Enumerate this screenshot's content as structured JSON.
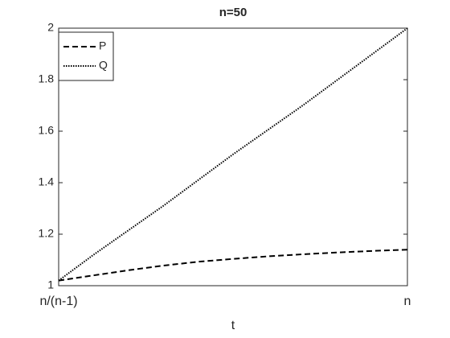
{
  "chart_data": {
    "type": "line",
    "title": "n=50",
    "x_label": "t",
    "x": [
      1.0204,
      5.918,
      10.816,
      15.714,
      20.612,
      25.51,
      30.408,
      35.306,
      40.204,
      45.102,
      50
    ],
    "series": [
      {
        "name": "P",
        "color": "#000000",
        "dash": "dashed",
        "values": [
          1.02,
          1.04,
          1.06,
          1.078,
          1.093,
          1.104,
          1.114,
          1.122,
          1.129,
          1.135,
          1.14
        ]
      },
      {
        "name": "Q",
        "color": "#000000",
        "dash": "dotted",
        "values": [
          1.02,
          1.12,
          1.215,
          1.31,
          1.41,
          1.51,
          1.605,
          1.7,
          1.8,
          1.9,
          2.0
        ]
      }
    ],
    "xlim": [
      1.0204,
      50
    ],
    "xticks": [
      {
        "value": 1.0204,
        "label": "n/(n-1)"
      },
      {
        "value": 50,
        "label": "n"
      }
    ],
    "ylim": [
      1,
      2
    ],
    "yticks": [
      1,
      1.2,
      1.4,
      1.6,
      1.8,
      2
    ],
    "grid": false,
    "legend_position": "upper-left"
  }
}
